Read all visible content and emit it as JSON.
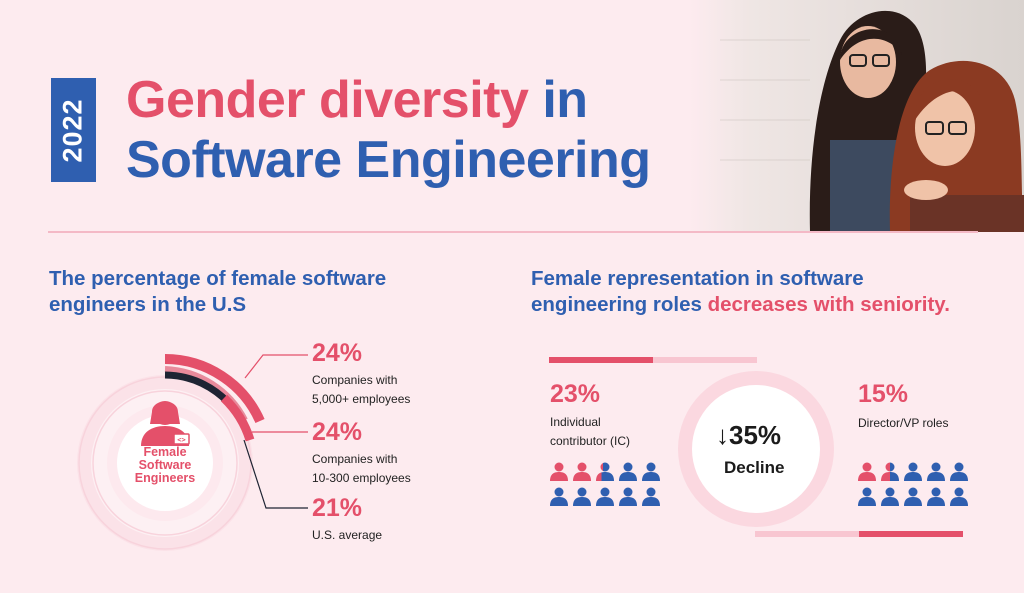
{
  "year": "2022",
  "title": {
    "line1_red": "Gender diversity",
    "line1_blue": " in",
    "line2": "Software Engineering"
  },
  "left_section": {
    "title_line1": "The percentage of female software",
    "title_line2": "engineers in the U.S",
    "center_label": [
      "Female",
      "Software",
      "Engineers"
    ],
    "stats": [
      {
        "percent": "24%",
        "line1": "Companies with",
        "line2": "5,000+ employees"
      },
      {
        "percent": "24%",
        "line1": "Companies with",
        "line2": "10-300 employees"
      },
      {
        "percent": "21%",
        "line1": "U.S. average",
        "line2": ""
      }
    ]
  },
  "right_section": {
    "title_line1": "Female representation in software",
    "title_line2_blue": "engineering roles ",
    "title_line2_red": "decreases with seniority.",
    "ic": {
      "percent": "23%",
      "line1": "Individual",
      "line2": "contributor (IC)",
      "female_share": 0.23
    },
    "director": {
      "percent": "15%",
      "line1": "Director/VP roles",
      "female_share": 0.15
    },
    "decline": {
      "value": "35%",
      "label": "Decline",
      "arrow": "down-arrow-icon"
    }
  },
  "colors": {
    "red": "#e4506a",
    "blue": "#2f5fb0",
    "pink_bg": "#fdebef",
    "dark": "#1e2433"
  }
}
